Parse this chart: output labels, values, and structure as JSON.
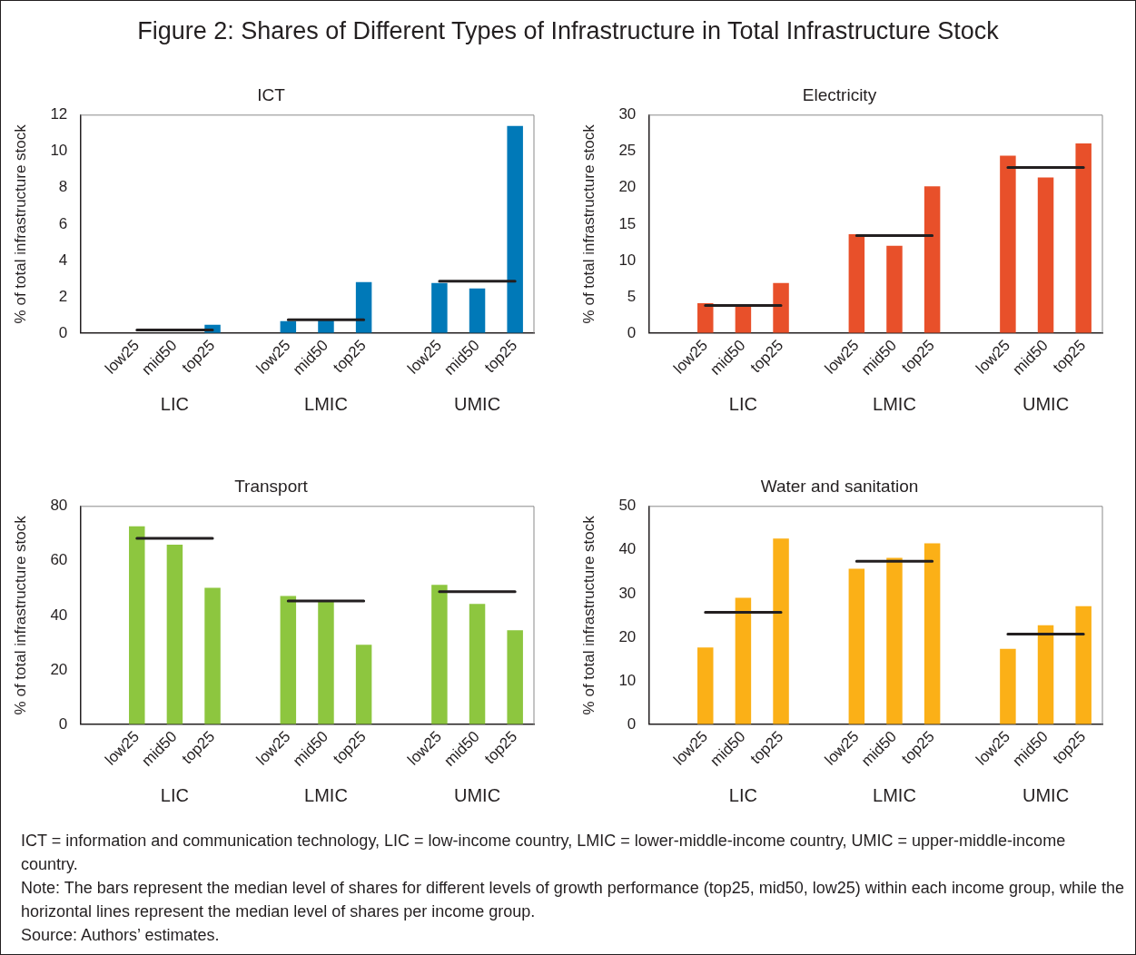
{
  "chart_data": [
    {
      "type": "other",
      "title": "Figure 2: Shares of Different Types of Infrastructure in Total Infrastructure Stock"
    },
    {
      "type": "bar",
      "title": "ICT",
      "ylabel": "% of total infrastructure stock",
      "categories": [
        null,
        "low25",
        "mid50",
        "top25",
        null,
        "low25",
        "mid50",
        "top25",
        null,
        "low25",
        "mid50",
        "top25"
      ],
      "series": [
        {
          "type": "bar",
          "color": "#0079b8",
          "values": [
            null,
            null,
            null,
            0.45,
            null,
            0.65,
            0.7,
            2.8,
            null,
            2.75,
            2.45,
            11.4
          ]
        },
        {
          "type": "line",
          "color": "#231f20",
          "values": [
            null,
            0.17,
            0.17,
            0.17,
            null,
            0.73,
            0.73,
            0.73,
            null,
            2.85,
            2.85,
            2.85
          ]
        }
      ],
      "ylim": [
        0,
        12
      ],
      "yticks": [
        0,
        2,
        4,
        6,
        8,
        10,
        12
      ],
      "marker": "none",
      "annotations": [
        "LIC",
        "LMIC",
        "UMIC"
      ]
    },
    {
      "type": "bar",
      "title": "Electricity",
      "ylabel": "% of total infrastructure stock",
      "categories": [
        null,
        "low25",
        "mid50",
        "top25",
        null,
        "low25",
        "mid50",
        "top25",
        null,
        "low25",
        "mid50",
        "top25"
      ],
      "series": [
        {
          "type": "bar",
          "color": "#e8502a",
          "values": [
            null,
            4.1,
            3.8,
            6.9,
            null,
            13.6,
            12.0,
            20.2,
            null,
            24.4,
            21.4,
            26.1
          ]
        },
        {
          "type": "line",
          "color": "#231f20",
          "values": [
            null,
            3.8,
            3.8,
            3.8,
            null,
            13.4,
            13.4,
            13.4,
            null,
            22.8,
            22.8,
            22.8
          ]
        }
      ],
      "ylim": [
        0,
        30
      ],
      "yticks": [
        0,
        5,
        10,
        15,
        20,
        25,
        30
      ],
      "marker": "none",
      "annotations": [
        "LIC",
        "LMIC",
        "UMIC"
      ]
    },
    {
      "type": "bar",
      "title": "Transport",
      "ylabel": "% of total infrastructure stock",
      "categories": [
        null,
        "low25",
        "mid50",
        "top25",
        null,
        "low25",
        "mid50",
        "top25",
        null,
        "low25",
        "mid50",
        "top25"
      ],
      "series": [
        {
          "type": "bar",
          "color": "#8dc63f",
          "values": [
            null,
            72.7,
            65.9,
            50.1,
            null,
            47.1,
            45.3,
            29.2,
            null,
            51.2,
            44.2,
            34.5
          ]
        },
        {
          "type": "line",
          "color": "#231f20",
          "values": [
            null,
            68.3,
            68.3,
            68.3,
            null,
            45.3,
            45.3,
            45.3,
            null,
            48.7,
            48.7,
            48.7
          ]
        }
      ],
      "ylim": [
        0,
        80
      ],
      "yticks": [
        0,
        20,
        40,
        60,
        80
      ],
      "marker": "none",
      "annotations": [
        "LIC",
        "LMIC",
        "UMIC"
      ]
    },
    {
      "type": "bar",
      "title": "Water and sanitation",
      "ylabel": "% of total infrastructure stock",
      "categories": [
        null,
        "low25",
        "mid50",
        "top25",
        null,
        "low25",
        "mid50",
        "top25",
        null,
        "low25",
        "mid50",
        "top25"
      ],
      "series": [
        {
          "type": "bar",
          "color": "#fbb017",
          "values": [
            null,
            17.6,
            29.0,
            42.6,
            null,
            35.7,
            38.2,
            41.5,
            null,
            17.3,
            22.7,
            27.1
          ]
        },
        {
          "type": "line",
          "color": "#231f20",
          "values": [
            null,
            25.7,
            25.7,
            25.7,
            null,
            37.4,
            37.4,
            37.4,
            null,
            20.7,
            20.7,
            20.7
          ]
        }
      ],
      "ylim": [
        0,
        50
      ],
      "yticks": [
        0,
        10,
        20,
        30,
        40,
        50
      ],
      "marker": "none",
      "annotations": [
        "LIC",
        "LMIC",
        "UMIC"
      ]
    },
    {
      "type": "other",
      "annotations": [
        "ICT = information and communication technology, LIC = low-income country, LMIC = lower-middle-income country, UMIC = upper-middle-income country.",
        "Note: The bars represent the median level of shares for different levels of growth performance (top25, mid50, low25) within each income group, while the horizontal lines represent the median level of shares per income group.",
        "Source: Authors’ estimates."
      ]
    }
  ]
}
